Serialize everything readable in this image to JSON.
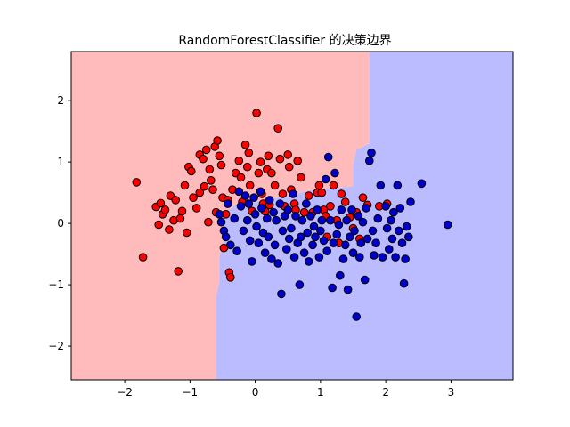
{
  "chart_data": {
    "type": "scatter",
    "title": "RandomForestClassifier 的决策边界",
    "xlabel": "",
    "ylabel": "",
    "xlim": [
      -2.82,
      3.95
    ],
    "ylim": [
      -2.55,
      2.8
    ],
    "x_ticks": [
      -2,
      -1,
      0,
      1,
      2,
      3
    ],
    "y_ticks": [
      -2,
      -1,
      0,
      1,
      2
    ],
    "grid": false,
    "colors": {
      "region_red": "#ffbbbb",
      "region_blue": "#bbbbff",
      "point_red": "#ff0000",
      "point_blue": "#0000cc",
      "edge": "#000000"
    },
    "decision_regions": [
      {
        "class": "red",
        "polygon": [
          [
            -2.82,
            2.8
          ],
          [
            1.75,
            2.8
          ],
          [
            1.75,
            1.3
          ],
          [
            1.55,
            1.2
          ],
          [
            1.5,
            0.95
          ],
          [
            1.5,
            0.6
          ],
          [
            0.9,
            0.55
          ],
          [
            0.5,
            0.45
          ],
          [
            0.0,
            0.35
          ],
          [
            -0.3,
            0.3
          ],
          [
            -0.55,
            0.1
          ],
          [
            -0.45,
            -0.1
          ],
          [
            -0.55,
            -0.55
          ],
          [
            -0.55,
            -0.95
          ],
          [
            -0.6,
            -1.2
          ],
          [
            -0.6,
            -2.55
          ],
          [
            -2.82,
            -2.55
          ]
        ]
      },
      {
        "class": "blue",
        "polygon": [
          [
            1.75,
            2.8
          ],
          [
            3.95,
            2.8
          ],
          [
            3.95,
            -2.55
          ],
          [
            -0.6,
            -2.55
          ],
          [
            -0.6,
            -1.2
          ],
          [
            -0.55,
            -0.95
          ],
          [
            -0.55,
            -0.55
          ],
          [
            -0.45,
            -0.1
          ],
          [
            -0.55,
            0.1
          ],
          [
            -0.3,
            0.3
          ],
          [
            0.0,
            0.35
          ],
          [
            0.5,
            0.45
          ],
          [
            0.9,
            0.55
          ],
          [
            1.5,
            0.6
          ],
          [
            1.5,
            0.95
          ],
          [
            1.55,
            1.2
          ],
          [
            1.75,
            1.3
          ]
        ]
      }
    ],
    "series": [
      {
        "color": "#ff0000",
        "points": [
          [
            -1.82,
            0.67
          ],
          [
            -1.72,
            -0.55
          ],
          [
            -1.52,
            0.27
          ],
          [
            -1.45,
            0.33
          ],
          [
            -1.42,
            0.15
          ],
          [
            -1.48,
            -0.02
          ],
          [
            -1.38,
            0.22
          ],
          [
            -1.3,
            0.45
          ],
          [
            -1.32,
            -0.1
          ],
          [
            -1.25,
            0.05
          ],
          [
            -1.22,
            0.38
          ],
          [
            -1.15,
            0.08
          ],
          [
            -1.12,
            0.2
          ],
          [
            -1.18,
            -0.78
          ],
          [
            -1.08,
            0.62
          ],
          [
            -1.02,
            0.92
          ],
          [
            -1.05,
            -0.15
          ],
          [
            -0.98,
            0.85
          ],
          [
            -0.95,
            0.42
          ],
          [
            -0.9,
            0.25
          ],
          [
            -0.85,
            0.5
          ],
          [
            -0.85,
            1.12
          ],
          [
            -0.8,
            1.05
          ],
          [
            -0.78,
            0.6
          ],
          [
            -0.75,
            1.2
          ],
          [
            -0.72,
            0.02
          ],
          [
            -0.7,
            0.88
          ],
          [
            -0.68,
            0.7
          ],
          [
            -0.65,
            0.55
          ],
          [
            -0.62,
            1.25
          ],
          [
            -0.6,
            0.18
          ],
          [
            -0.58,
            1.35
          ],
          [
            -0.55,
            1.1
          ],
          [
            -0.52,
            0.95
          ],
          [
            -0.5,
            0.42
          ],
          [
            -0.48,
            -0.4
          ],
          [
            -0.45,
            0.15
          ],
          [
            -0.42,
            0.38
          ],
          [
            -0.4,
            -0.8
          ],
          [
            -0.38,
            -0.88
          ],
          [
            -0.35,
            0.55
          ],
          [
            -0.3,
            0.82
          ],
          [
            -0.25,
            1.02
          ],
          [
            -0.22,
            0.75
          ],
          [
            -0.2,
            0.35
          ],
          [
            -0.15,
            1.28
          ],
          [
            -0.12,
            0.92
          ],
          [
            -0.1,
            1.15
          ],
          [
            -0.08,
            0.62
          ],
          [
            -0.05,
            0.2
          ],
          [
            0.02,
            1.8
          ],
          [
            0.05,
            0.82
          ],
          [
            0.08,
            1.0
          ],
          [
            0.1,
            0.48
          ],
          [
            0.12,
            0.32
          ],
          [
            0.15,
            0.2
          ],
          [
            0.18,
            0.88
          ],
          [
            0.2,
            1.1
          ],
          [
            0.22,
            0.3
          ],
          [
            0.25,
            0.82
          ],
          [
            0.3,
            0.62
          ],
          [
            0.35,
            1.55
          ],
          [
            0.38,
            1.05
          ],
          [
            0.42,
            0.48
          ],
          [
            0.45,
            0.28
          ],
          [
            0.5,
            1.12
          ],
          [
            0.52,
            0.92
          ],
          [
            0.55,
            0.55
          ],
          [
            0.6,
            0.32
          ],
          [
            0.62,
            0.22
          ],
          [
            0.65,
            1.02
          ],
          [
            0.7,
            0.75
          ],
          [
            0.75,
            0.18
          ],
          [
            0.82,
            0.45
          ],
          [
            0.88,
            0.18
          ],
          [
            0.95,
            0.5
          ],
          [
            0.98,
            0.62
          ],
          [
            1.02,
            0.5
          ],
          [
            1.05,
            0.22
          ],
          [
            1.08,
            0.12
          ],
          [
            1.1,
            -0.22
          ],
          [
            1.15,
            0.28
          ],
          [
            1.2,
            0.62
          ],
          [
            1.25,
            0.05
          ],
          [
            1.28,
            -0.32
          ],
          [
            1.32,
            0.48
          ],
          [
            1.38,
            0.35
          ],
          [
            1.45,
            0.1
          ],
          [
            1.5,
            -0.08
          ],
          [
            1.55,
            0.18
          ],
          [
            1.6,
            -0.25
          ],
          [
            1.65,
            0.42
          ],
          [
            1.72,
            0.3
          ],
          [
            1.9,
            0.28
          ],
          [
            2.02,
            0.32
          ]
        ]
      },
      {
        "color": "#0000cc",
        "points": [
          [
            -0.55,
            0.15
          ],
          [
            -0.52,
            0.02
          ],
          [
            -0.48,
            -0.12
          ],
          [
            -0.45,
            -0.22
          ],
          [
            -0.42,
            0.32
          ],
          [
            -0.38,
            -0.35
          ],
          [
            -0.32,
            0.08
          ],
          [
            -0.28,
            -0.45
          ],
          [
            -0.25,
            0.52
          ],
          [
            -0.22,
            0.28
          ],
          [
            -0.18,
            -0.12
          ],
          [
            -0.15,
            0.45
          ],
          [
            -0.12,
            0.05
          ],
          [
            -0.1,
            0.32
          ],
          [
            -0.08,
            -0.28
          ],
          [
            -0.05,
            -0.62
          ],
          [
            -0.02,
            0.42
          ],
          [
            0.0,
            0.15
          ],
          [
            0.02,
            -0.05
          ],
          [
            0.05,
            -0.32
          ],
          [
            0.08,
            0.52
          ],
          [
            0.1,
            0.25
          ],
          [
            0.12,
            -0.15
          ],
          [
            0.15,
            -0.48
          ],
          [
            0.18,
            0.08
          ],
          [
            0.2,
            -0.22
          ],
          [
            0.22,
            0.38
          ],
          [
            0.25,
            -0.58
          ],
          [
            0.28,
            0.18
          ],
          [
            0.3,
            -0.35
          ],
          [
            0.32,
            0.05
          ],
          [
            0.35,
            -0.65
          ],
          [
            0.38,
            0.32
          ],
          [
            0.4,
            -1.15
          ],
          [
            0.42,
            -0.12
          ],
          [
            0.45,
            0.12
          ],
          [
            0.48,
            -0.42
          ],
          [
            0.5,
            0.22
          ],
          [
            0.52,
            -0.25
          ],
          [
            0.55,
            -0.08
          ],
          [
            0.58,
            0.48
          ],
          [
            0.6,
            -0.55
          ],
          [
            0.62,
            0.12
          ],
          [
            0.65,
            -0.32
          ],
          [
            0.68,
            -1.0
          ],
          [
            0.7,
            -0.22
          ],
          [
            0.72,
            0.05
          ],
          [
            0.75,
            -0.48
          ],
          [
            0.78,
            0.32
          ],
          [
            0.8,
            -0.15
          ],
          [
            0.82,
            -0.62
          ],
          [
            0.85,
            0.12
          ],
          [
            0.88,
            -0.35
          ],
          [
            0.9,
            -0.05
          ],
          [
            0.92,
            -0.22
          ],
          [
            0.95,
            0.22
          ],
          [
            0.98,
            -0.55
          ],
          [
            1.0,
            -0.12
          ],
          [
            1.02,
            0.05
          ],
          [
            1.05,
            -0.28
          ],
          [
            1.08,
            0.72
          ],
          [
            1.1,
            -0.45
          ],
          [
            1.12,
            1.08
          ],
          [
            1.15,
            0.05
          ],
          [
            1.18,
            -1.05
          ],
          [
            1.2,
            -0.32
          ],
          [
            1.22,
            0.82
          ],
          [
            1.25,
            -0.18
          ],
          [
            1.28,
            -0.02
          ],
          [
            1.3,
            -0.85
          ],
          [
            1.32,
            0.22
          ],
          [
            1.35,
            -0.58
          ],
          [
            1.38,
            -0.35
          ],
          [
            1.4,
            0.05
          ],
          [
            1.42,
            -1.08
          ],
          [
            1.45,
            -0.22
          ],
          [
            1.48,
            0.22
          ],
          [
            1.5,
            -0.48
          ],
          [
            1.52,
            -0.12
          ],
          [
            1.55,
            -1.52
          ],
          [
            1.58,
            0.12
          ],
          [
            1.6,
            -0.55
          ],
          [
            1.62,
            -0.32
          ],
          [
            1.65,
            0.02
          ],
          [
            1.68,
            -0.92
          ],
          [
            1.7,
            0.25
          ],
          [
            1.72,
            -0.25
          ],
          [
            1.75,
            1.02
          ],
          [
            1.78,
            1.15
          ],
          [
            1.8,
            -0.12
          ],
          [
            1.82,
            -0.52
          ],
          [
            1.85,
            -0.32
          ],
          [
            1.88,
            0.08
          ],
          [
            1.92,
            0.62
          ],
          [
            1.95,
            -0.55
          ],
          [
            2.0,
            0.28
          ],
          [
            2.02,
            -0.08
          ],
          [
            2.05,
            -0.42
          ],
          [
            2.08,
            0.05
          ],
          [
            2.1,
            -0.25
          ],
          [
            2.12,
            0.18
          ],
          [
            2.15,
            -0.55
          ],
          [
            2.18,
            0.62
          ],
          [
            2.2,
            -0.12
          ],
          [
            2.22,
            0.25
          ],
          [
            2.25,
            -0.32
          ],
          [
            2.28,
            -0.98
          ],
          [
            2.3,
            -0.58
          ],
          [
            2.32,
            -0.05
          ],
          [
            2.35,
            -0.22
          ],
          [
            2.38,
            0.35
          ],
          [
            2.55,
            0.65
          ],
          [
            2.95,
            -0.02
          ]
        ]
      }
    ]
  }
}
